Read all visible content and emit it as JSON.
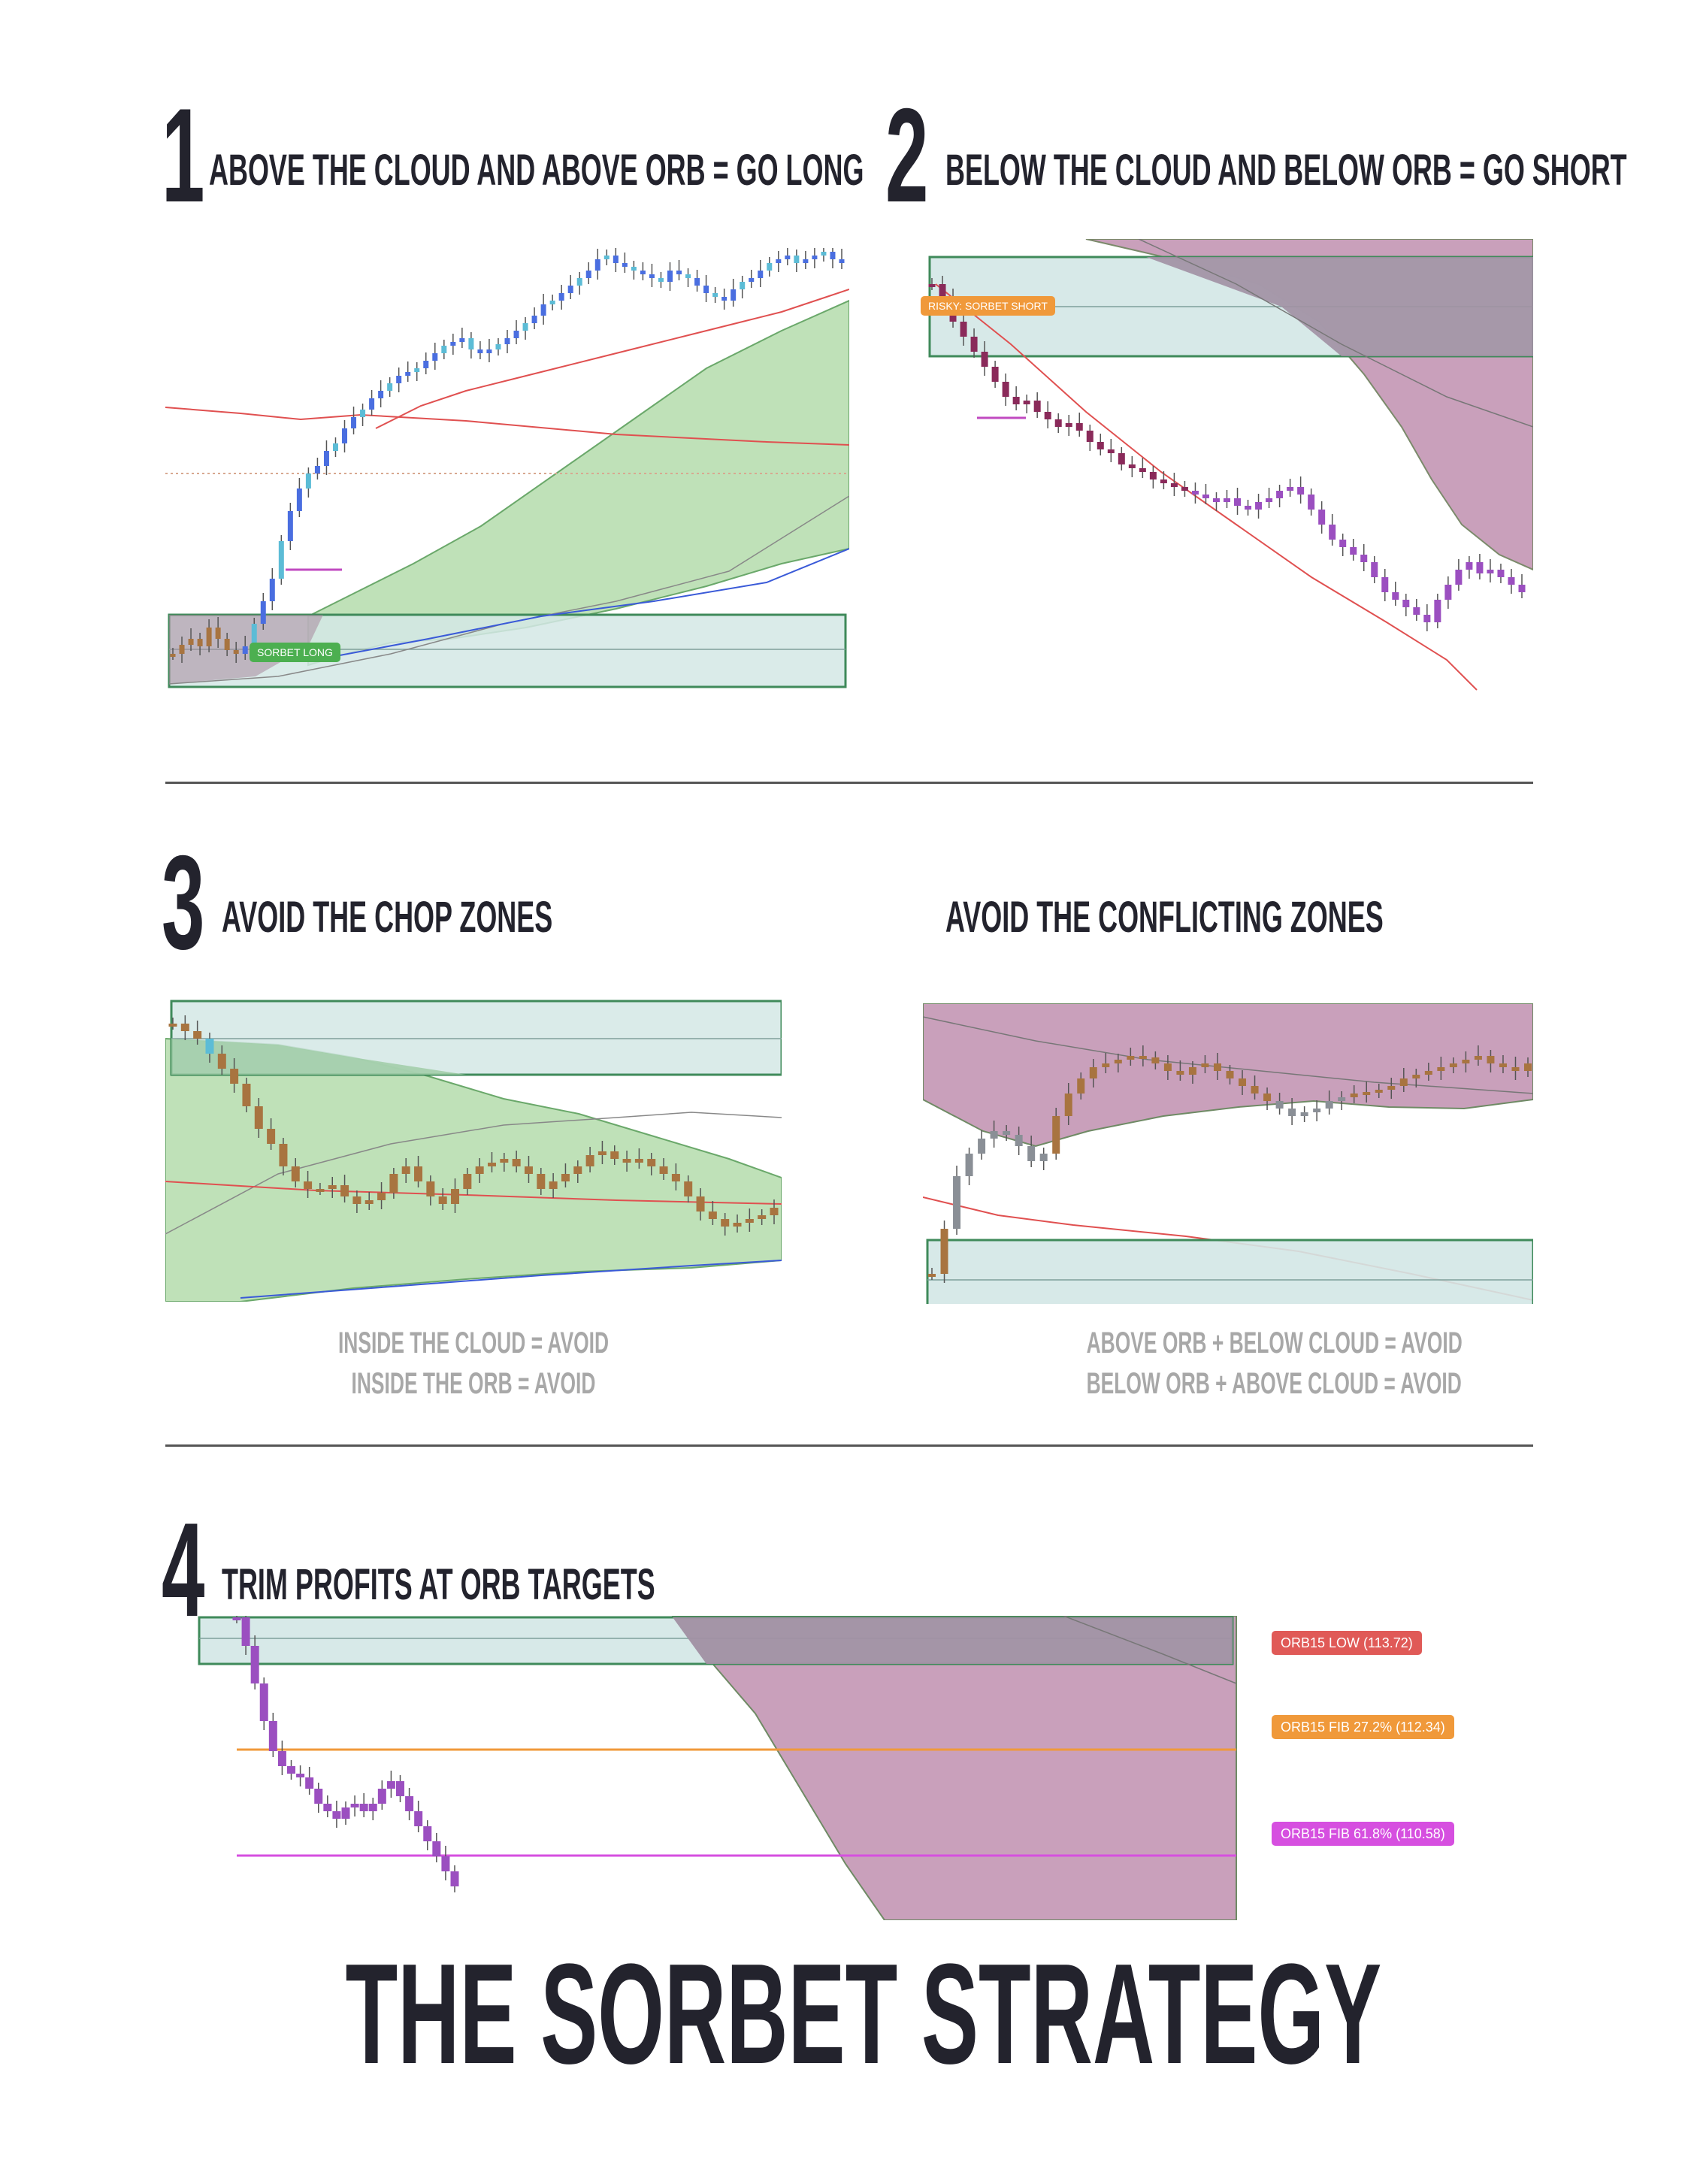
{
  "section1": {
    "number": "1",
    "heading": "ABOVE THE CLOUD AND ABOVE ORB = GO LONG",
    "label": "SORBET LONG"
  },
  "section2": {
    "number": "2",
    "heading": "BELOW THE CLOUD AND BELOW ORB = GO SHORT",
    "label": "RISKY: SORBET SHORT"
  },
  "section3": {
    "number": "3",
    "heading_left": "AVOID THE CHOP ZONES",
    "heading_right": "AVOID THE CONFLICTING ZONES",
    "notes_left": [
      "INSIDE THE CLOUD = AVOID",
      "INSIDE THE ORB = AVOID"
    ],
    "notes_right": [
      "ABOVE ORB + BELOW CLOUD = AVOID",
      "BELOW ORB + ABOVE CLOUD = AVOID"
    ]
  },
  "section4": {
    "number": "4",
    "heading": "TRIM PROFITS AT ORB TARGETS",
    "levels": [
      {
        "label": "ORB15 LOW (113.72)",
        "color": "#e05a57"
      },
      {
        "label": "ORB15 FIB 27.2% (112.34)",
        "color": "#f0993a"
      },
      {
        "label": "ORB15 FIB 61.8% (110.58)",
        "color": "#d64fe0"
      }
    ]
  },
  "title": "THE SORBET STRATEGY",
  "colors": {
    "orb_fill": "#d3e7e5",
    "orb_border": "#3f8a5a",
    "bull_cloud": "#bfe1b8",
    "bear_cloud": "#c9a0bb",
    "long_candles": "#4a6ee0",
    "long_candles_alt": "#5cbcd6",
    "short_candles": "#8a2a5a",
    "short_candles_alt": "#9b4fc0",
    "neutral_candles": "#a87440",
    "gray_candles": "#8a8f96",
    "ema_line": "#e05050",
    "sma_line": "#3a5ad8"
  }
}
